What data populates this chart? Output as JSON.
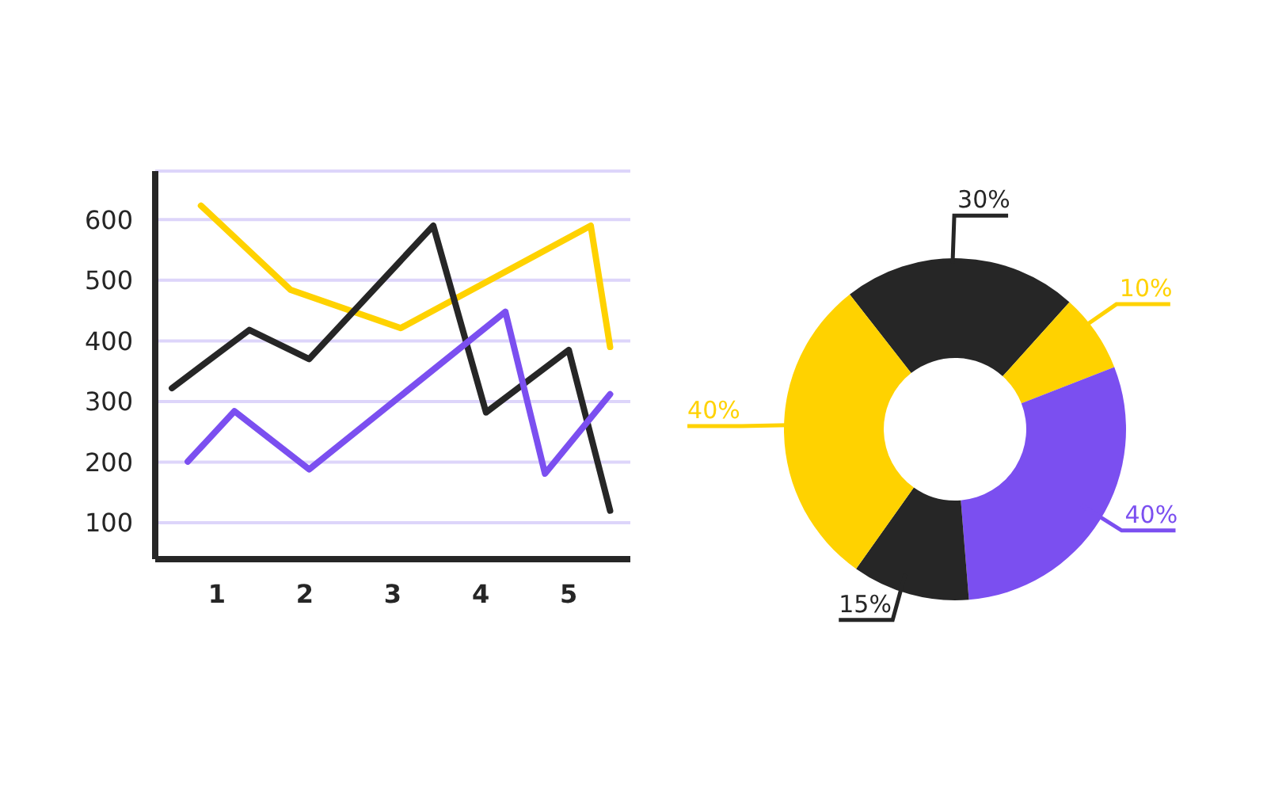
{
  "chart_data": [
    {
      "type": "line",
      "xlim": [
        0.3,
        5.7
      ],
      "xticks": [
        1,
        2,
        3,
        4,
        5
      ],
      "ylim": [
        40,
        680
      ],
      "yticks": [
        100,
        200,
        300,
        400,
        500,
        600
      ],
      "grid": "y",
      "legend": false,
      "marker": "none",
      "line_style": "solid",
      "series": [
        {
          "color": "#ffd200",
          "x": [
            0.82,
            1.84,
            3.09,
            5.25,
            5.47
          ],
          "values": [
            623,
            484,
            421,
            590,
            390
          ]
        },
        {
          "color": "#262626",
          "x": [
            0.49,
            1.37,
            2.05,
            3.46,
            4.06,
            5.0,
            5.47
          ],
          "values": [
            322,
            418,
            370,
            590,
            282,
            385,
            120
          ]
        },
        {
          "color": "#7b4ff0",
          "x": [
            0.67,
            1.2,
            2.05,
            4.28,
            4.73,
            5.47
          ],
          "values": [
            201,
            284,
            188,
            448,
            181,
            312
          ]
        }
      ]
    },
    {
      "type": "donut",
      "categories": [
        null,
        null,
        null,
        null,
        null
      ],
      "values": [
        30,
        10,
        40,
        15,
        40
      ],
      "colors": [
        "#262626",
        "#ffd200",
        "#7b4ff0",
        "#262626",
        "#ffd200"
      ],
      "value_labels": [
        "30%",
        "10%",
        "40%",
        "15%",
        "40%"
      ]
    }
  ]
}
